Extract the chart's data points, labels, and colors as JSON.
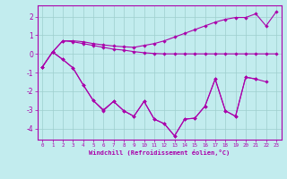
{
  "xlabel": "Windchill (Refroidissement éolien,°C)",
  "xlim": [
    -0.5,
    23.5
  ],
  "ylim": [
    -4.6,
    2.6
  ],
  "yticks": [
    -4,
    -3,
    -2,
    -1,
    0,
    1,
    2
  ],
  "xticks": [
    0,
    1,
    2,
    3,
    4,
    5,
    6,
    7,
    8,
    9,
    10,
    11,
    12,
    13,
    14,
    15,
    16,
    17,
    18,
    19,
    20,
    21,
    22,
    23
  ],
  "bg_color": "#c2ecee",
  "line_color": "#aa00aa",
  "grid_color": "#9ecece",
  "lines": [
    {
      "x": [
        0,
        1,
        2,
        3,
        4,
        5,
        6,
        7,
        8,
        9,
        10,
        11,
        12,
        13,
        14,
        15,
        16,
        17,
        18,
        19,
        20,
        21,
        22,
        23
      ],
      "y": [
        -0.7,
        0.1,
        0.7,
        0.65,
        0.55,
        0.45,
        0.35,
        0.25,
        0.2,
        0.12,
        0.06,
        0.02,
        0.0,
        0.0,
        0.0,
        0.0,
        0.0,
        0.0,
        0.0,
        0.0,
        0.0,
        0.0,
        0.0,
        0.0
      ]
    },
    {
      "x": [
        0,
        1,
        2,
        3,
        4,
        5,
        6,
        7,
        8,
        9,
        10,
        11,
        12,
        13,
        14,
        15,
        16,
        17,
        18,
        19,
        20,
        21,
        22,
        23
      ],
      "y": [
        -0.7,
        0.1,
        0.7,
        0.7,
        0.65,
        0.55,
        0.48,
        0.42,
        0.38,
        0.35,
        0.45,
        0.55,
        0.7,
        0.9,
        1.1,
        1.3,
        1.5,
        1.7,
        1.85,
        1.95,
        1.95,
        2.15,
        1.5,
        2.25
      ]
    },
    {
      "x": [
        0,
        1,
        2,
        3,
        4,
        5,
        6,
        7,
        8,
        9,
        10,
        11,
        12,
        13,
        14,
        15,
        16,
        17,
        18,
        19,
        20,
        21,
        22
      ],
      "y": [
        -0.7,
        0.1,
        -0.3,
        -0.75,
        -1.65,
        -2.5,
        -3.0,
        -2.55,
        -3.05,
        -3.35,
        -2.55,
        -3.5,
        -3.75,
        -4.4,
        -3.5,
        -3.45,
        -2.8,
        -1.35,
        -3.05,
        -3.35,
        -1.25,
        -1.35,
        -1.5
      ]
    },
    {
      "x": [
        1,
        2,
        3,
        4,
        5,
        6,
        7,
        8,
        9,
        10,
        11,
        12,
        13,
        14,
        15,
        16,
        17,
        18,
        19,
        20,
        21
      ],
      "y": [
        0.1,
        -0.3,
        -0.75,
        -1.65,
        -2.5,
        -3.05,
        -2.55,
        -3.05,
        -3.35,
        -2.55,
        -3.5,
        -3.75,
        -4.4,
        -3.5,
        -3.45,
        -2.8,
        -1.35,
        -3.05,
        -3.35,
        -1.25,
        -1.35
      ]
    }
  ]
}
